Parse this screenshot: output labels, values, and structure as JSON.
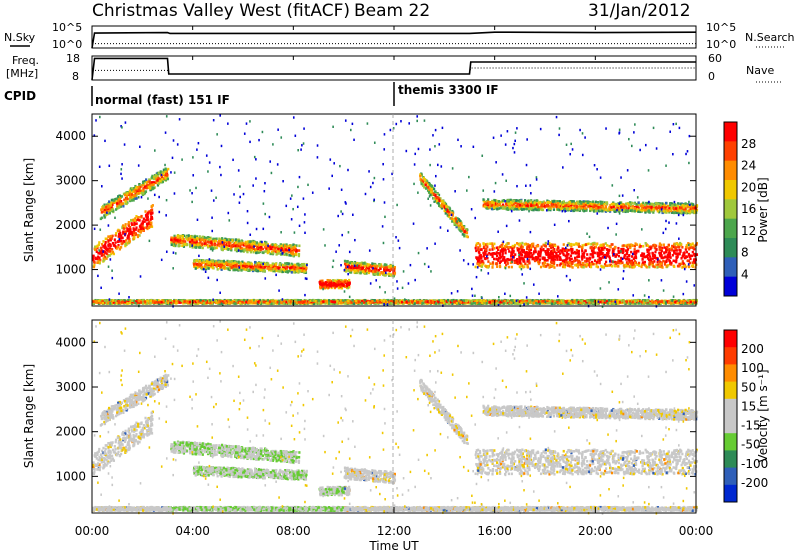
{
  "header": {
    "title": "Christmas Valley West (fitACF)",
    "beam": "Beam 22",
    "date": "31/Jan/2012"
  },
  "top_panels": {
    "nsky_label": "N.Sky",
    "nsky_ticks": [
      "10^5",
      "10^0"
    ],
    "nsearch_label": "N.Search",
    "nsearch_ticks": [
      "10^5",
      "10^0"
    ],
    "freq_label_1": "Freq.",
    "freq_label_2": "[MHz]",
    "freq_ticks": [
      "18",
      "8"
    ],
    "nave_label": "Nave",
    "nave_ticks": [
      "60",
      "0"
    ],
    "cpid_label": "CPID",
    "cpid_modes": [
      "normal (fast) 151 IF",
      "themis 3300 IF"
    ]
  },
  "chart_data": [
    {
      "type": "line",
      "name": "nsky-nsearch",
      "x_hours": [
        0,
        0.1,
        3.0,
        3.1,
        9.0,
        12.0,
        15.0,
        16.0,
        20.0,
        24.0
      ],
      "nsky_log": [
        0,
        3.4,
        3.5,
        3.3,
        3.3,
        3.3,
        3.3,
        3.6,
        3.5,
        3.6
      ],
      "nsearch_log": [
        1.0,
        1.0,
        1.0,
        1.0,
        1.0,
        1.0,
        1.0,
        1.0,
        1.0,
        1.0
      ]
    },
    {
      "type": "line",
      "name": "freq-nave",
      "freq_mhz": {
        "x_hours": [
          0,
          0.1,
          3.0,
          3.05,
          15.0,
          15.05,
          24.0
        ],
        "values": [
          8,
          17,
          17,
          10.5,
          10.5,
          15.5,
          15.5
        ]
      },
      "nave": {
        "x_hours": [
          0,
          3.0,
          3.05,
          15.0,
          15.05,
          24.0
        ],
        "values": [
          24,
          24,
          15,
          15,
          30,
          30
        ]
      }
    },
    {
      "type": "heatmap",
      "name": "power",
      "ylabel": "Slant Range [km]",
      "yticks": [
        1000,
        2000,
        3000,
        4000
      ],
      "ylim": [
        180,
        4500
      ],
      "colorbar_label": "Power [dB]",
      "colorbar_ticks": [
        "28",
        "24",
        "20",
        "16",
        "12",
        "8",
        "4"
      ],
      "colorbar_colors": [
        "#0000d8",
        "#2f5fb8",
        "#2e8b57",
        "#4ca64c",
        "#a0c83c",
        "#f0c800",
        "#ff8c00",
        "#ff4000",
        "#ff0000"
      ]
    },
    {
      "type": "heatmap",
      "name": "velocity",
      "ylabel": "Slant Range [km]",
      "yticks": [
        1000,
        2000,
        3000,
        4000
      ],
      "ylim": [
        180,
        4500
      ],
      "colorbar_label": "Velocity [m s⁻¹]",
      "colorbar_ticks": [
        "200",
        "100",
        "50",
        "15",
        "-15",
        "-50",
        "-100",
        "-200"
      ],
      "colorbar_colors": [
        "#0028d0",
        "#2f5fb8",
        "#2e8b57",
        "#66cc33",
        "#c8c8c8",
        "#c8c8c8",
        "#f0c800",
        "#ff8c00",
        "#ff3c00",
        "#ff0000"
      ]
    }
  ],
  "time_axis": {
    "label": "Time UT",
    "ticks": [
      "00:00",
      "04:00",
      "08:00",
      "12:00",
      "16:00",
      "20:00",
      "00:00"
    ]
  }
}
